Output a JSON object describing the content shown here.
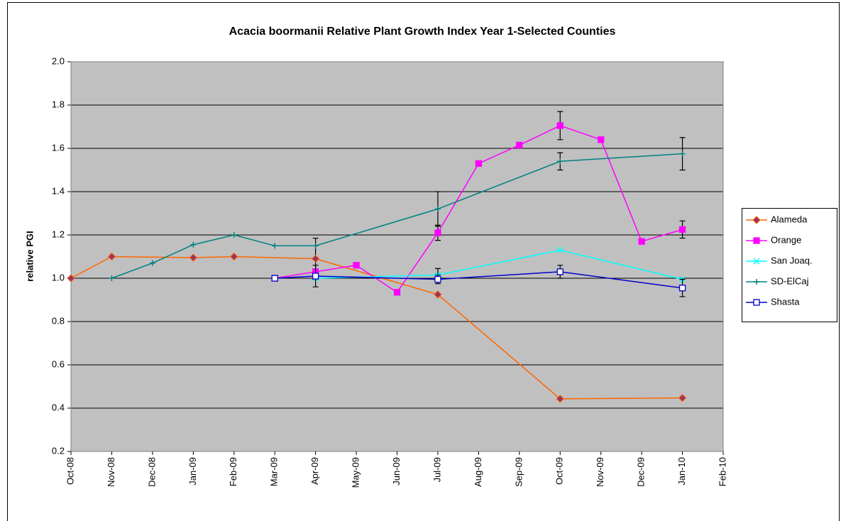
{
  "chart_data": {
    "type": "line",
    "title": "Acacia boormanii Relative Plant Growth Index Year 1-Selected Counties",
    "y_label": "relative PGI",
    "categories": [
      "Oct-08",
      "Nov-08",
      "Dec-08",
      "Jan-09",
      "Feb-09",
      "Mar-09",
      "Apr-09",
      "May-09",
      "Jun-09",
      "Jul-09",
      "Aug-09",
      "Sep-09",
      "Oct-09",
      "Nov-09",
      "Dec-09",
      "Jan-10",
      "Feb-10"
    ],
    "ylim": [
      0.2,
      2.0
    ],
    "yticks": [
      {
        "value": 0.2,
        "label": "0.2"
      },
      {
        "value": 0.4,
        "label": "0.4"
      },
      {
        "value": 0.6,
        "label": "0.6"
      },
      {
        "value": 0.8,
        "label": "0.8"
      },
      {
        "value": 1.0,
        "label": "1.0"
      },
      {
        "value": 1.2,
        "label": "1.2"
      },
      {
        "value": 1.4,
        "label": "1.4"
      },
      {
        "value": 1.6,
        "label": "1.6"
      },
      {
        "value": 1.8,
        "label": "1.8"
      },
      {
        "value": 2.0,
        "label": "2.0"
      }
    ],
    "grid": true,
    "plot_background": "#c0c0c0",
    "legend": "right",
    "series": [
      {
        "name": "Alameda",
        "color": "#ff6600",
        "marker": "diamond",
        "marker_fill": "#993366",
        "x": [
          "Oct-08",
          "Nov-08",
          "Jan-09",
          "Feb-09",
          "Apr-09",
          "Jul-09",
          "Oct-09",
          "Jan-10"
        ],
        "values": [
          1.0,
          1.1,
          1.095,
          1.1,
          1.09,
          0.925,
          0.443,
          0.447
        ],
        "errors": [
          null,
          null,
          null,
          null,
          0.095,
          null,
          null,
          null
        ]
      },
      {
        "name": "Orange",
        "color": "#ff00ff",
        "marker": "square",
        "marker_fill": "#ff00ff",
        "x": [
          "Mar-09",
          "Apr-09",
          "May-09",
          "Jun-09",
          "Jul-09",
          "Aug-09",
          "Sep-09",
          "Oct-09",
          "Nov-09",
          "Dec-09",
          "Jan-10"
        ],
        "values": [
          1.0,
          1.03,
          1.06,
          0.935,
          1.21,
          1.53,
          1.615,
          1.705,
          1.64,
          1.17,
          1.225
        ],
        "errors": [
          null,
          null,
          null,
          null,
          0.035,
          null,
          null,
          0.065,
          null,
          null,
          0.04
        ]
      },
      {
        "name": "San Joaq.",
        "color": "#00ffff",
        "marker": "x",
        "marker_fill": "#00ffff",
        "x": [
          "Apr-09",
          "Jul-09",
          "Oct-09",
          "Jan-10"
        ],
        "values": [
          1.0,
          1.015,
          1.13,
          0.995
        ],
        "errors": [
          null,
          0.03,
          null,
          null
        ]
      },
      {
        "name": "SD-ElCaj",
        "color": "#008080",
        "marker": "plus",
        "marker_fill": "#008080",
        "x": [
          "Nov-08",
          "Dec-08",
          "Jan-09",
          "Feb-09",
          "Mar-09",
          "Apr-09",
          "Jul-09",
          "Oct-09",
          "Jan-10"
        ],
        "values": [
          1.0,
          1.07,
          1.155,
          1.2,
          1.15,
          1.15,
          1.32,
          1.54,
          1.575
        ],
        "errors": [
          null,
          null,
          null,
          null,
          null,
          null,
          0.08,
          0.04,
          0.075
        ]
      },
      {
        "name": "Shasta",
        "color": "#0000cc",
        "marker": "open-square",
        "marker_fill": "#ffffff",
        "x": [
          "Mar-09",
          "Apr-09",
          "Jul-09",
          "Oct-09",
          "Jan-10"
        ],
        "values": [
          1.0,
          1.01,
          0.995,
          1.03,
          0.955
        ],
        "errors": [
          null,
          0.05,
          0.02,
          0.03,
          0.04
        ]
      }
    ]
  }
}
